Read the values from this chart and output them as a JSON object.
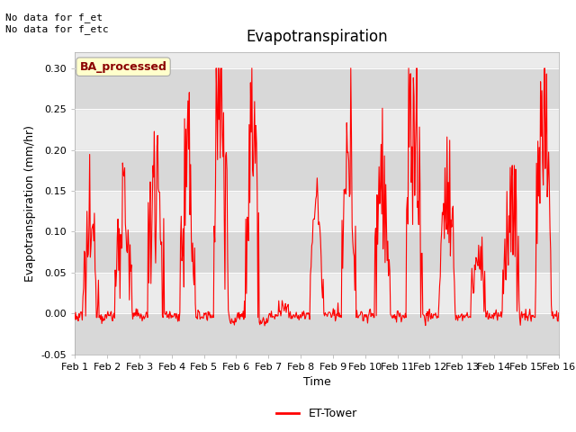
{
  "title": "Evapotranspiration",
  "xlabel": "Time",
  "ylabel": "Evapotranspiration (mm/hr)",
  "ylim": [
    -0.05,
    0.32
  ],
  "yticks": [
    -0.05,
    0.0,
    0.05,
    0.1,
    0.15,
    0.2,
    0.25,
    0.3
  ],
  "xtick_labels": [
    "Feb 1",
    "Feb 2",
    "Feb 3",
    "Feb 4",
    "Feb 5",
    "Feb 6",
    "Feb 7",
    "Feb 8",
    "Feb 9",
    "Feb 10",
    "Feb 11",
    "Feb 12",
    "Feb 13",
    "Feb 14",
    "Feb 15",
    "Feb 16"
  ],
  "line_color": "#ff0000",
  "line_width": 0.8,
  "legend_label": "ET-Tower",
  "annotation_text": "No data for f_et\nNo data for f_etc",
  "badge_text": "BA_processed",
  "badge_facecolor": "#ffffcc",
  "badge_edgecolor": "#aaaaaa",
  "background_color": "#ffffff",
  "plot_bg_color": "#ebebeb",
  "band_color_dark": "#d8d8d8",
  "band_color_light": "#ebebeb",
  "title_fontsize": 12,
  "axis_fontsize": 9,
  "tick_fontsize": 8,
  "annotation_fontsize": 8
}
